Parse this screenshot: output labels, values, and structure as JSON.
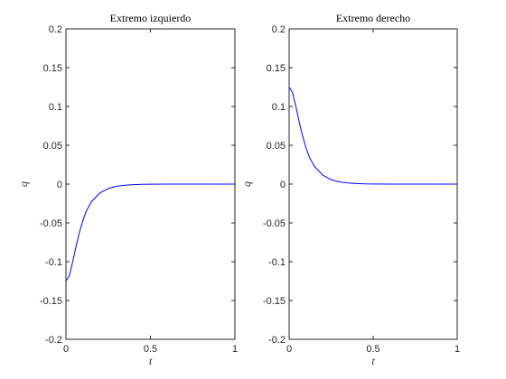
{
  "chart_data": [
    {
      "type": "line",
      "title": "Extremo izquierdo",
      "xlabel": "t",
      "ylabel": "q",
      "xlim": [
        0,
        1
      ],
      "ylim": [
        -0.2,
        0.2
      ],
      "xticks": [
        "0",
        "0.5",
        "1"
      ],
      "yticks": [
        "-0.2",
        "-0.15",
        "-0.1",
        "-0.05",
        "0",
        "0.05",
        "0.1",
        "0.15",
        "0.2"
      ],
      "grid": false,
      "color": "#0000ff",
      "series": [
        {
          "x": [
            0,
            0.02,
            0.04,
            0.06,
            0.08,
            0.1,
            0.12,
            0.15,
            0.2,
            0.25,
            0.3,
            0.35,
            0.4,
            0.45,
            0.5,
            0.6,
            0.7,
            0.8,
            0.9,
            1.0
          ],
          "y": [
            -0.125,
            -0.118,
            -0.1,
            -0.08,
            -0.062,
            -0.047,
            -0.035,
            -0.023,
            -0.0115,
            -0.0057,
            -0.0028,
            -0.0014,
            -0.0007,
            -0.0003,
            -0.0002,
            -5e-05,
            0,
            0,
            0,
            0
          ]
        }
      ]
    },
    {
      "type": "line",
      "title": "Extremo derecho",
      "xlabel": "t",
      "ylabel": "q",
      "xlim": [
        0,
        1
      ],
      "ylim": [
        -0.2,
        0.2
      ],
      "xticks": [
        "0",
        "0.5",
        "1"
      ],
      "yticks": [
        "-0.2",
        "-0.15",
        "-0.1",
        "-0.05",
        "0",
        "0.05",
        "0.1",
        "0.15",
        "0.2"
      ],
      "grid": false,
      "color": "#0000ff",
      "series": [
        {
          "x": [
            0,
            0.02,
            0.04,
            0.06,
            0.08,
            0.1,
            0.12,
            0.15,
            0.2,
            0.25,
            0.3,
            0.35,
            0.4,
            0.45,
            0.5,
            0.6,
            0.7,
            0.8,
            0.9,
            1.0
          ],
          "y": [
            0.125,
            0.118,
            0.1,
            0.08,
            0.062,
            0.047,
            0.035,
            0.023,
            0.0115,
            0.0057,
            0.0028,
            0.0014,
            0.0007,
            0.0003,
            0.0002,
            5e-05,
            0,
            0,
            0,
            0
          ]
        }
      ]
    }
  ]
}
